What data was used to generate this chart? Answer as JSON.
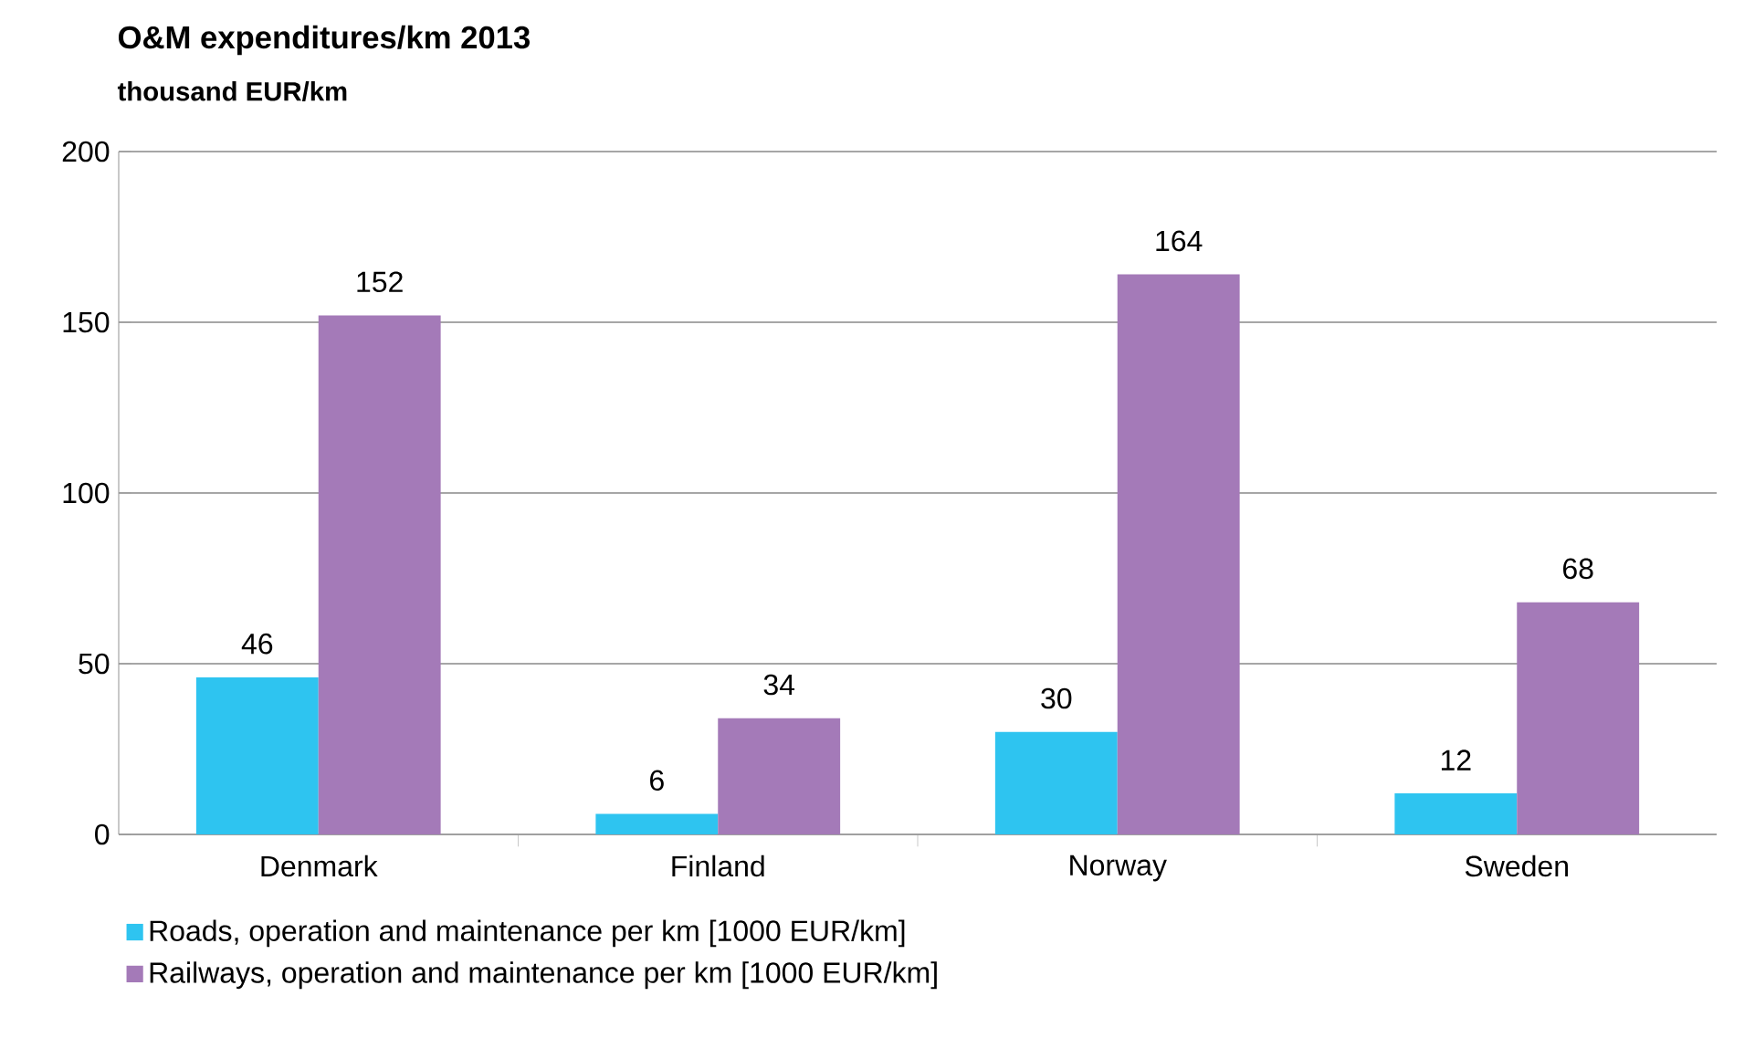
{
  "chart_data": {
    "type": "bar",
    "title": "O&M expenditures/km 2013",
    "subtitle": "thousand EUR/km",
    "categories": [
      "Denmark",
      "Finland",
      "Norway",
      "Sweden"
    ],
    "series": [
      {
        "name": "Roads, operation and maintenance per km [1000 EUR/km]",
        "color": "#2ec4f0",
        "values": [
          46,
          6,
          30,
          12
        ]
      },
      {
        "name": "Railways, operation and maintenance per km [1000 EUR/km]",
        "color": "#a47ab8",
        "values": [
          152,
          34,
          164,
          68
        ]
      }
    ],
    "ylim": [
      0,
      200
    ],
    "yticks": [
      0,
      50,
      100,
      150,
      200
    ],
    "grid": "y",
    "legend": "bottom",
    "data_labels": true
  }
}
